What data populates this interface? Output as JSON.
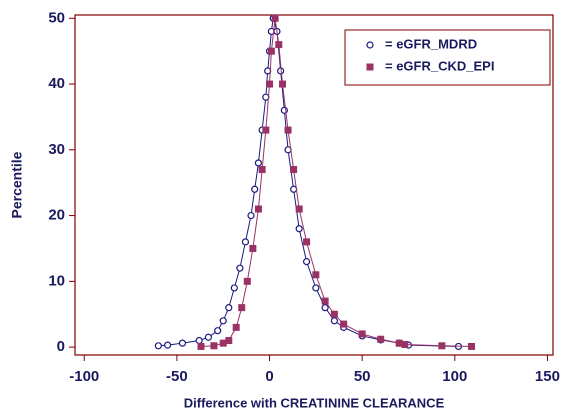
{
  "chart_data": {
    "type": "line",
    "xlabel": "Difference with CREATININE CLEARANCE",
    "ylabel": "Percentile",
    "xlim": [
      -105,
      153
    ],
    "ylim": [
      -1.2,
      50.5
    ],
    "xticks": [
      -100,
      -50,
      0,
      50,
      100,
      150
    ],
    "yticks": [
      0,
      10,
      20,
      30,
      40,
      50
    ],
    "legend": "upper right",
    "series": [
      {
        "name": "= eGFR_MDRD",
        "color": "#1a1a80",
        "marker": "circle",
        "x": [
          -60,
          -55,
          -47,
          -38,
          -33,
          -28,
          -25,
          -22,
          -19,
          -16,
          -13,
          -10,
          -8,
          -6,
          -4,
          -2,
          -1,
          0,
          1,
          2,
          4,
          6,
          8,
          10,
          13,
          16,
          20,
          25,
          30,
          35,
          40,
          50,
          60,
          70,
          75,
          102
        ],
        "values": [
          0.2,
          0.3,
          0.6,
          1,
          1.5,
          2.5,
          4,
          6,
          9,
          12,
          16,
          20,
          24,
          28,
          33,
          38,
          42,
          45,
          48,
          50,
          48,
          42,
          36,
          30,
          24,
          18,
          13,
          9,
          6,
          4,
          3,
          1.7,
          1.1,
          0.6,
          0.3,
          0.1
        ]
      },
      {
        "name": "= eGFR_CKD_EPI",
        "color": "#993366",
        "marker": "square",
        "x": [
          -37,
          -30,
          -25,
          -22,
          -18,
          -15,
          -12,
          -9,
          -6,
          -4,
          -2,
          0,
          1,
          3,
          5,
          7,
          10,
          13,
          16,
          20,
          25,
          30,
          35,
          40,
          50,
          60,
          70,
          73,
          93,
          109
        ],
        "values": [
          0.1,
          0.2,
          0.6,
          1,
          3,
          6,
          10,
          15,
          21,
          27,
          33,
          40,
          45,
          50,
          46,
          40,
          33,
          27,
          21,
          16,
          11,
          7,
          5,
          3.5,
          2,
          1.2,
          0.6,
          0.4,
          0.2,
          0.1
        ]
      }
    ]
  }
}
